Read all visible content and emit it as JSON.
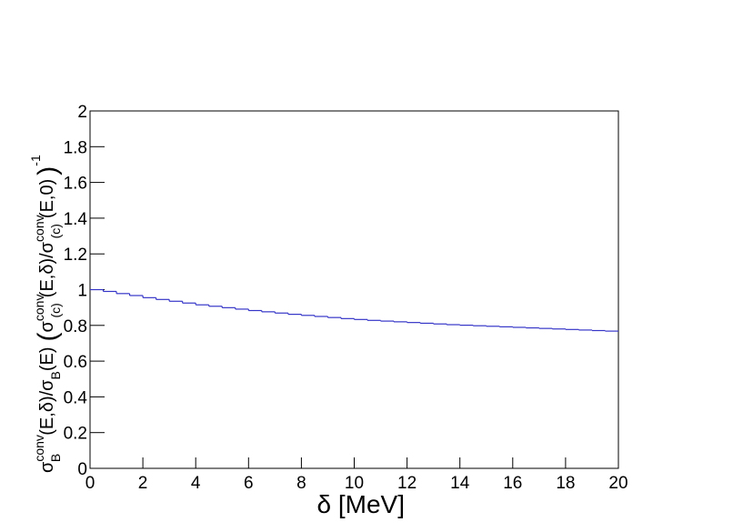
{
  "chart_data": {
    "type": "histogram",
    "xlabel": "δ [MeV]",
    "ylabel_parts": [
      "σ",
      "conv",
      "B",
      "(E,δ)/σ",
      "B",
      "(E)",
      "(",
      "σ",
      "conv",
      "(c)",
      "(E,δ)/σ",
      "conv",
      "(c)",
      "(E,0)",
      ")",
      "-1"
    ],
    "bins": [
      0,
      0.5,
      1,
      1.5,
      2,
      2.5,
      3,
      3.5,
      4,
      4.5,
      5,
      5.5,
      6,
      6.5,
      7,
      7.5,
      8,
      8.5,
      9,
      9.5,
      10,
      10.5,
      11,
      11.5,
      12,
      12.5,
      13,
      13.5,
      14,
      14.5,
      15,
      15.5,
      16,
      16.5,
      17,
      17.5,
      18,
      18.5,
      19,
      19.5,
      20
    ],
    "values": [
      1.0,
      0.99,
      0.978,
      0.967,
      0.955,
      0.945,
      0.935,
      0.925,
      0.915,
      0.907,
      0.899,
      0.891,
      0.883,
      0.876,
      0.869,
      0.862,
      0.856,
      0.85,
      0.844,
      0.838,
      0.833,
      0.828,
      0.824,
      0.82,
      0.816,
      0.812,
      0.808,
      0.804,
      0.801,
      0.798,
      0.795,
      0.792,
      0.789,
      0.786,
      0.783,
      0.78,
      0.777,
      0.774,
      0.771,
      0.768
    ],
    "color": "#3535c8",
    "xlim": [
      0,
      20
    ],
    "xticks": [
      0,
      2,
      4,
      6,
      8,
      10,
      12,
      14,
      16,
      18,
      20
    ],
    "ylim": [
      0,
      2
    ],
    "yticks": [
      0,
      0.2,
      0.4,
      0.6,
      0.8,
      1,
      1.2,
      1.4,
      1.6,
      1.8,
      2
    ],
    "grid": false
  }
}
